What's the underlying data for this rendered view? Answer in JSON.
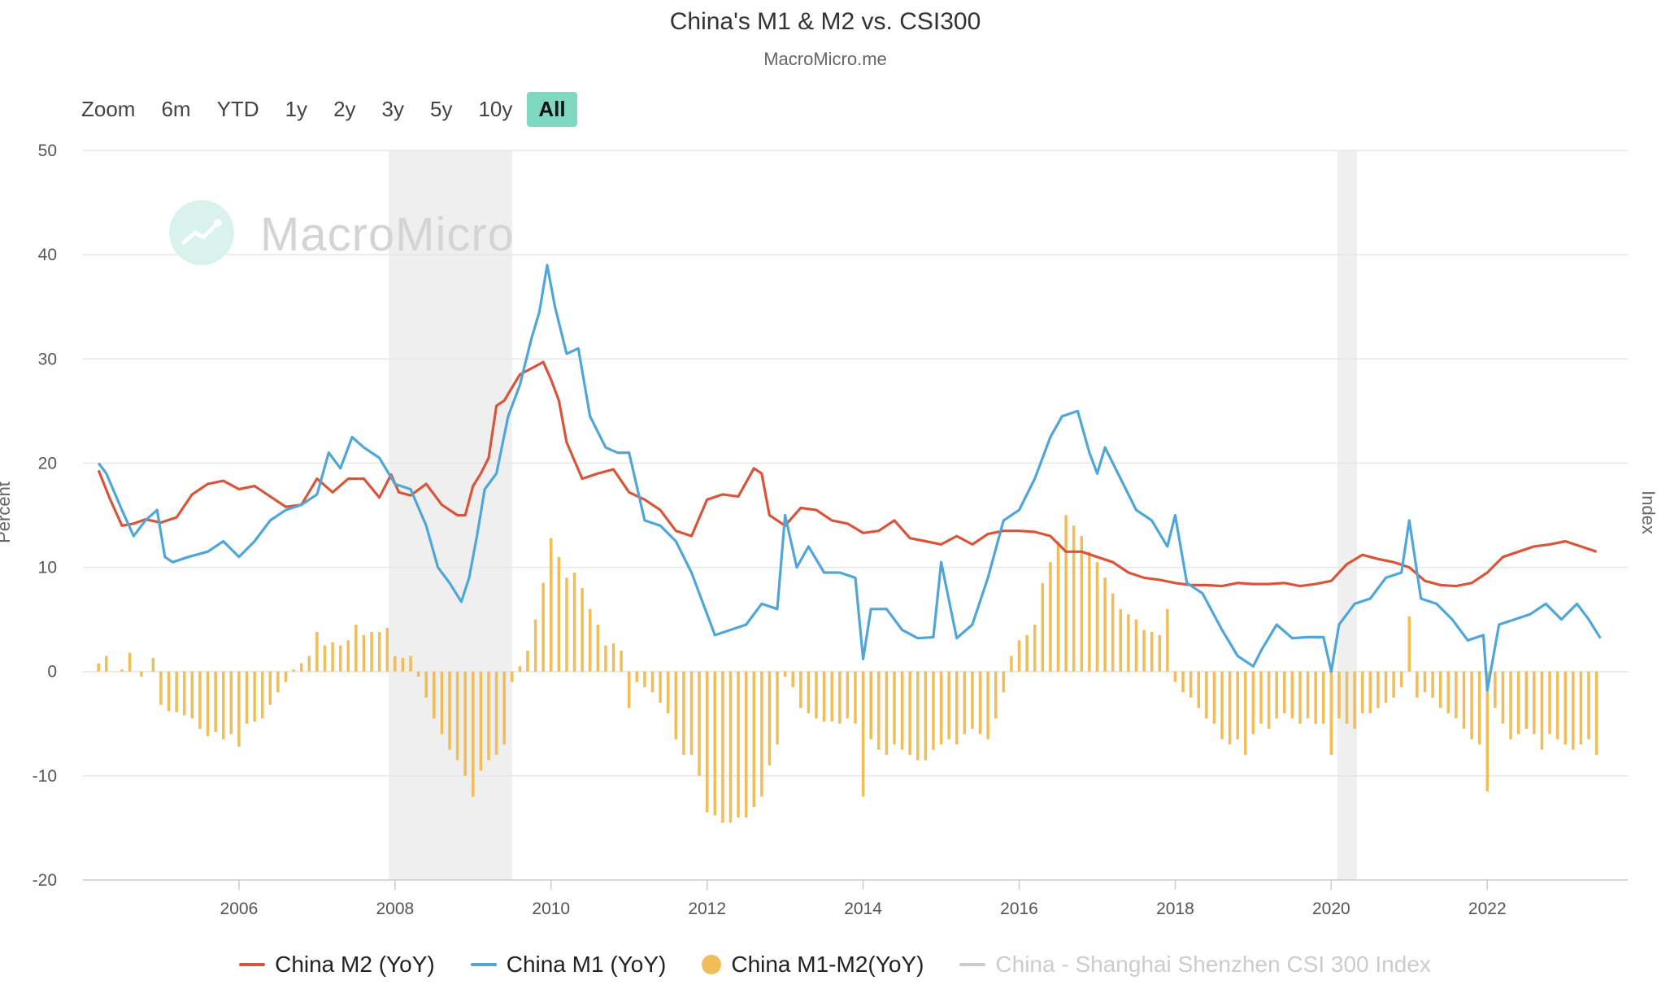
{
  "header": {
    "title": "China's M1 & M2 vs. CSI300",
    "subtitle": "MacroMicro.me"
  },
  "range_selector": {
    "zoom_label": "Zoom",
    "buttons": [
      "6m",
      "YTD",
      "1y",
      "2y",
      "3y",
      "5y",
      "10y",
      "All"
    ],
    "active": "All"
  },
  "watermark": {
    "text": "MacroMicro"
  },
  "legend": {
    "items": [
      {
        "label": "China M2 (YoY)",
        "color": "#d9553a",
        "symbol": "line",
        "visible": true
      },
      {
        "label": "China M1 (YoY)",
        "color": "#4fa6d8",
        "symbol": "line",
        "visible": true
      },
      {
        "label": "China M1-M2(YoY)",
        "color": "#f0bd58",
        "symbol": "dot",
        "visible": true
      },
      {
        "label": "China - Shanghai Shenzhen CSI 300 Index",
        "color": "#cccccc",
        "symbol": "line",
        "visible": false
      }
    ]
  },
  "chart_data": {
    "type": "line",
    "title": "China's M1 & M2 vs. CSI300",
    "subtitle": "MacroMicro.me",
    "ylabel": "Percent",
    "y2label": "Index",
    "ylim": [
      -20,
      50
    ],
    "yticks": [
      50,
      40,
      30,
      20,
      10,
      0,
      -10,
      -20
    ],
    "xlim": [
      2004.0,
      2023.8
    ],
    "xticks": [
      2006,
      2008,
      2010,
      2012,
      2014,
      2016,
      2018,
      2020,
      2022
    ],
    "grid": true,
    "legend_position": "bottom",
    "shaded_periods": [
      [
        2007.92,
        2009.5
      ],
      [
        2020.08,
        2020.33
      ]
    ],
    "series": [
      {
        "name": "China M2 (YoY)",
        "color": "#d9553a",
        "kind": "line",
        "x": [
          2004.2,
          2004.35,
          2004.5,
          2004.65,
          2004.8,
          2005.0,
          2005.2,
          2005.4,
          2005.6,
          2005.8,
          2006.0,
          2006.2,
          2006.4,
          2006.6,
          2006.8,
          2007.0,
          2007.2,
          2007.4,
          2007.6,
          2007.8,
          2007.95,
          2008.05,
          2008.2,
          2008.4,
          2008.6,
          2008.8,
          2008.9,
          2009.0,
          2009.1,
          2009.2,
          2009.3,
          2009.4,
          2009.6,
          2009.8,
          2009.9,
          2010.0,
          2010.1,
          2010.2,
          2010.4,
          2010.6,
          2010.8,
          2011.0,
          2011.2,
          2011.4,
          2011.6,
          2011.8,
          2012.0,
          2012.2,
          2012.4,
          2012.6,
          2012.7,
          2012.8,
          2013.0,
          2013.2,
          2013.4,
          2013.6,
          2013.8,
          2014.0,
          2014.2,
          2014.4,
          2014.6,
          2014.8,
          2015.0,
          2015.2,
          2015.4,
          2015.6,
          2015.8,
          2016.0,
          2016.2,
          2016.4,
          2016.6,
          2016.8,
          2017.0,
          2017.2,
          2017.4,
          2017.6,
          2017.8,
          2018.0,
          2018.2,
          2018.4,
          2018.6,
          2018.8,
          2019.0,
          2019.2,
          2019.4,
          2019.6,
          2019.8,
          2020.0,
          2020.2,
          2020.4,
          2020.6,
          2020.8,
          2021.0,
          2021.2,
          2021.4,
          2021.6,
          2021.8,
          2022.0,
          2022.2,
          2022.4,
          2022.6,
          2022.8,
          2023.0,
          2023.2,
          2023.4
        ],
        "values": [
          19.3,
          16.5,
          14.0,
          14.2,
          14.6,
          14.3,
          14.8,
          17.0,
          18.0,
          18.3,
          17.5,
          17.8,
          16.8,
          15.8,
          16.0,
          18.5,
          17.2,
          18.5,
          18.5,
          16.7,
          18.9,
          17.2,
          16.9,
          18.0,
          16.0,
          15.0,
          15.0,
          17.8,
          19.0,
          20.5,
          25.5,
          26.0,
          28.5,
          29.3,
          29.7,
          28.0,
          26.0,
          22.0,
          18.5,
          19.0,
          19.4,
          17.2,
          16.5,
          15.5,
          13.5,
          13.0,
          16.5,
          17.0,
          16.8,
          19.5,
          19.0,
          15.0,
          14.0,
          15.7,
          15.5,
          14.5,
          14.2,
          13.3,
          13.5,
          14.5,
          12.8,
          12.5,
          12.2,
          13.0,
          12.2,
          13.2,
          13.5,
          13.5,
          13.4,
          13.0,
          11.5,
          11.5,
          11.0,
          10.5,
          9.5,
          9.0,
          8.8,
          8.5,
          8.3,
          8.3,
          8.2,
          8.5,
          8.4,
          8.4,
          8.5,
          8.2,
          8.4,
          8.7,
          10.3,
          11.2,
          10.8,
          10.5,
          10.0,
          8.7,
          8.3,
          8.2,
          8.5,
          9.5,
          11.0,
          11.5,
          12.0,
          12.2,
          12.5,
          12.0,
          11.5
        ]
      },
      {
        "name": "China M1 (YoY)",
        "color": "#4fa6d8",
        "kind": "line",
        "x": [
          2004.2,
          2004.3,
          2004.5,
          2004.65,
          2004.8,
          2004.95,
          2005.05,
          2005.15,
          2005.35,
          2005.6,
          2005.8,
          2006.0,
          2006.2,
          2006.4,
          2006.6,
          2006.8,
          2007.0,
          2007.15,
          2007.3,
          2007.45,
          2007.6,
          2007.8,
          2008.0,
          2008.2,
          2008.4,
          2008.55,
          2008.7,
          2008.85,
          2008.95,
          2009.05,
          2009.15,
          2009.3,
          2009.45,
          2009.6,
          2009.75,
          2009.85,
          2009.95,
          2010.05,
          2010.2,
          2010.35,
          2010.5,
          2010.7,
          2010.85,
          2011.0,
          2011.2,
          2011.4,
          2011.6,
          2011.8,
          2011.95,
          2012.1,
          2012.3,
          2012.5,
          2012.7,
          2012.9,
          2013.0,
          2013.15,
          2013.3,
          2013.5,
          2013.7,
          2013.9,
          2014.0,
          2014.1,
          2014.3,
          2014.5,
          2014.7,
          2014.9,
          2015.0,
          2015.2,
          2015.4,
          2015.6,
          2015.8,
          2016.0,
          2016.2,
          2016.4,
          2016.55,
          2016.75,
          2016.9,
          2017.0,
          2017.1,
          2017.3,
          2017.5,
          2017.7,
          2017.9,
          2018.0,
          2018.15,
          2018.35,
          2018.6,
          2018.8,
          2019.0,
          2019.1,
          2019.3,
          2019.5,
          2019.7,
          2019.9,
          2020.0,
          2020.1,
          2020.3,
          2020.5,
          2020.7,
          2020.9,
          2021.0,
          2021.15,
          2021.35,
          2021.55,
          2021.75,
          2021.95,
          2022.0,
          2022.15,
          2022.35,
          2022.55,
          2022.75,
          2022.95,
          2023.15,
          2023.3,
          2023.45
        ],
        "values": [
          20.0,
          19.0,
          15.5,
          13.0,
          14.5,
          15.5,
          11.0,
          10.5,
          11.0,
          11.5,
          12.5,
          11.0,
          12.5,
          14.5,
          15.5,
          16.0,
          17.0,
          21.0,
          19.5,
          22.5,
          21.5,
          20.5,
          18.0,
          17.5,
          14.0,
          10.0,
          8.5,
          6.7,
          9.0,
          13.0,
          17.5,
          19.0,
          24.5,
          27.5,
          32.0,
          34.5,
          39.0,
          35.0,
          30.5,
          31.0,
          24.5,
          21.5,
          21.0,
          21.0,
          14.5,
          14.0,
          12.5,
          9.5,
          6.5,
          3.5,
          4.0,
          4.5,
          6.5,
          6.0,
          15.0,
          10.0,
          12.0,
          9.5,
          9.5,
          9.0,
          1.2,
          6.0,
          6.0,
          4.0,
          3.2,
          3.3,
          10.5,
          3.2,
          4.5,
          9.0,
          14.5,
          15.5,
          18.5,
          22.5,
          24.5,
          25.0,
          21.0,
          19.0,
          21.5,
          18.5,
          15.5,
          14.5,
          12.0,
          15.0,
          8.5,
          7.5,
          4.0,
          1.5,
          0.5,
          2.0,
          4.5,
          3.2,
          3.3,
          3.3,
          0.0,
          4.5,
          6.5,
          7.0,
          9.0,
          9.5,
          14.5,
          7.0,
          6.5,
          5.0,
          3.0,
          3.5,
          -1.8,
          4.5,
          5.0,
          5.5,
          6.5,
          5.0,
          6.5,
          5.0,
          3.2
        ]
      },
      {
        "name": "China M1-M2(YoY)",
        "color": "#f0bd58",
        "kind": "bar",
        "x": [
          2004.2,
          2004.3,
          2004.5,
          2004.6,
          2004.75,
          2004.9,
          2005.0,
          2005.1,
          2005.2,
          2005.3,
          2005.4,
          2005.5,
          2005.6,
          2005.7,
          2005.8,
          2005.9,
          2006.0,
          2006.1,
          2006.2,
          2006.3,
          2006.4,
          2006.5,
          2006.6,
          2006.7,
          2006.8,
          2006.9,
          2007.0,
          2007.1,
          2007.2,
          2007.3,
          2007.4,
          2007.5,
          2007.6,
          2007.7,
          2007.8,
          2007.9,
          2008.0,
          2008.1,
          2008.2,
          2008.3,
          2008.4,
          2008.5,
          2008.6,
          2008.7,
          2008.8,
          2008.9,
          2009.0,
          2009.1,
          2009.2,
          2009.3,
          2009.4,
          2009.5,
          2009.6,
          2009.7,
          2009.8,
          2009.9,
          2010.0,
          2010.1,
          2010.2,
          2010.3,
          2010.4,
          2010.5,
          2010.6,
          2010.7,
          2010.8,
          2010.9,
          2011.0,
          2011.1,
          2011.2,
          2011.3,
          2011.4,
          2011.5,
          2011.6,
          2011.7,
          2011.8,
          2011.9,
          2012.0,
          2012.1,
          2012.2,
          2012.3,
          2012.4,
          2012.5,
          2012.6,
          2012.7,
          2012.8,
          2012.9,
          2013.0,
          2013.1,
          2013.2,
          2013.3,
          2013.4,
          2013.5,
          2013.6,
          2013.7,
          2013.8,
          2013.9,
          2014.0,
          2014.1,
          2014.2,
          2014.3,
          2014.4,
          2014.5,
          2014.6,
          2014.7,
          2014.8,
          2014.9,
          2015.0,
          2015.1,
          2015.2,
          2015.3,
          2015.4,
          2015.5,
          2015.6,
          2015.7,
          2015.8,
          2015.9,
          2016.0,
          2016.1,
          2016.2,
          2016.3,
          2016.4,
          2016.5,
          2016.6,
          2016.7,
          2016.8,
          2016.9,
          2017.0,
          2017.1,
          2017.2,
          2017.3,
          2017.4,
          2017.5,
          2017.6,
          2017.7,
          2017.8,
          2017.9,
          2018.0,
          2018.1,
          2018.2,
          2018.3,
          2018.4,
          2018.5,
          2018.6,
          2018.7,
          2018.8,
          2018.9,
          2019.0,
          2019.1,
          2019.2,
          2019.3,
          2019.4,
          2019.5,
          2019.6,
          2019.7,
          2019.8,
          2019.9,
          2020.0,
          2020.1,
          2020.2,
          2020.3,
          2020.4,
          2020.5,
          2020.6,
          2020.7,
          2020.8,
          2020.9,
          2021.0,
          2021.1,
          2021.2,
          2021.3,
          2021.4,
          2021.5,
          2021.6,
          2021.7,
          2021.8,
          2021.9,
          2022.0,
          2022.1,
          2022.2,
          2022.3,
          2022.4,
          2022.5,
          2022.6,
          2022.7,
          2022.8,
          2022.9,
          2023.0,
          2023.1,
          2023.2,
          2023.3,
          2023.4
        ],
        "values": [
          0.8,
          1.5,
          0.2,
          1.8,
          -0.5,
          1.3,
          -3.2,
          -3.8,
          -3.9,
          -4.2,
          -4.5,
          -5.5,
          -6.2,
          -5.8,
          -6.5,
          -6.0,
          -7.2,
          -5.0,
          -4.8,
          -4.5,
          -3.2,
          -2.0,
          -1.0,
          0.2,
          0.8,
          1.5,
          3.8,
          2.5,
          2.8,
          2.5,
          3.0,
          4.5,
          3.5,
          3.8,
          3.8,
          4.2,
          1.5,
          1.3,
          1.5,
          -0.5,
          -2.5,
          -4.5,
          -6.0,
          -7.5,
          -8.5,
          -10.0,
          -12.0,
          -9.5,
          -8.5,
          -8.0,
          -7.0,
          -1.0,
          0.5,
          2.0,
          5.0,
          8.5,
          12.8,
          11.0,
          9.0,
          9.5,
          8.0,
          6.0,
          4.5,
          2.5,
          2.7,
          2.0,
          -3.5,
          -1.0,
          -1.5,
          -2.0,
          -3.0,
          -4.0,
          -6.5,
          -8.0,
          -8.0,
          -10.0,
          -13.5,
          -13.8,
          -14.5,
          -14.5,
          -14.0,
          -14.0,
          -13.0,
          -12.0,
          -9.0,
          -7.0,
          -0.5,
          -1.5,
          -3.5,
          -4.0,
          -4.5,
          -4.8,
          -4.8,
          -5.0,
          -4.5,
          -5.0,
          -12.0,
          -6.5,
          -7.5,
          -8.0,
          -7.0,
          -7.5,
          -8.0,
          -8.5,
          -8.5,
          -7.5,
          -7.0,
          -6.5,
          -7.0,
          -6.0,
          -5.5,
          -6.0,
          -6.5,
          -4.5,
          -2.0,
          1.5,
          3.0,
          3.5,
          4.5,
          8.5,
          10.5,
          12.5,
          15.0,
          14.0,
          13.0,
          11.5,
          10.5,
          9.0,
          7.5,
          6.0,
          5.5,
          5.0,
          4.0,
          3.8,
          3.5,
          6.0,
          -1.0,
          -2.0,
          -2.5,
          -3.5,
          -4.5,
          -5.0,
          -6.5,
          -7.0,
          -6.5,
          -8.0,
          -6.0,
          -5.0,
          -5.5,
          -4.5,
          -4.0,
          -4.5,
          -5.0,
          -4.5,
          -5.0,
          -5.0,
          -8.0,
          -4.5,
          -5.0,
          -5.5,
          -4.0,
          -4.0,
          -3.5,
          -3.0,
          -2.5,
          -1.5,
          5.3,
          -2.5,
          -2.0,
          -2.5,
          -3.5,
          -4.0,
          -4.5,
          -5.5,
          -6.5,
          -7.0,
          -11.5,
          -3.5,
          -5.0,
          -6.5,
          -6.0,
          -5.5,
          -6.0,
          -7.5,
          -6.0,
          -6.5,
          -7.0,
          -7.5,
          -7.0,
          -6.5,
          -8.0
        ]
      }
    ]
  }
}
